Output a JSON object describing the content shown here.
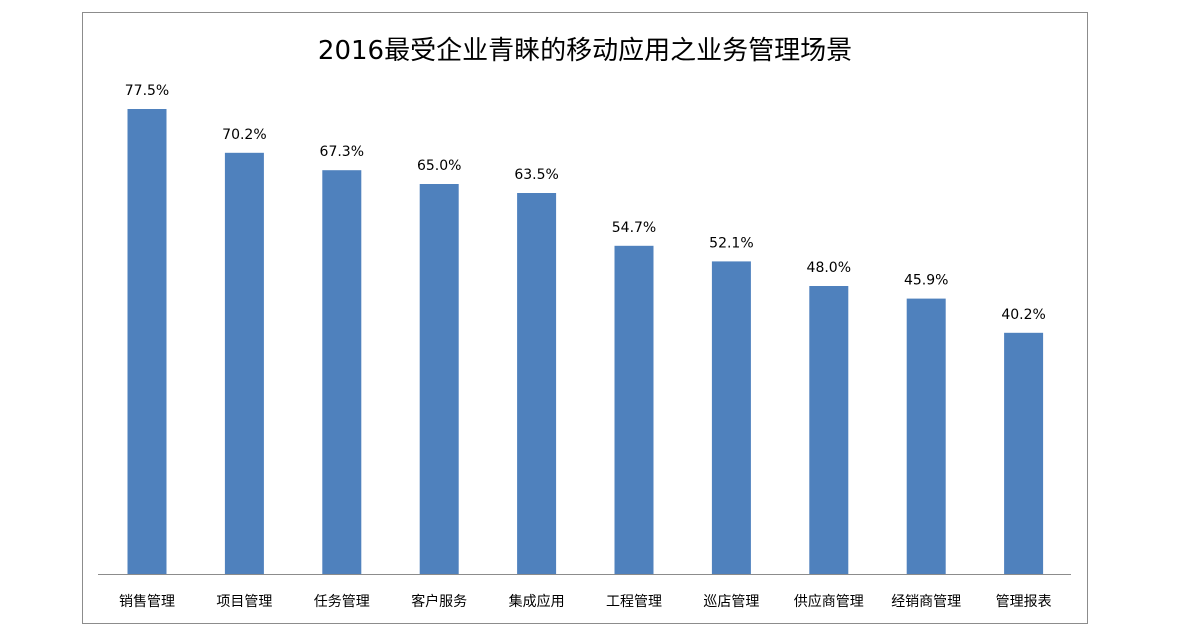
{
  "chart_data": {
    "type": "bar",
    "title": "2016最受企业青睐的移动应用之业务管理场景",
    "categories": [
      "销售管理",
      "项目管理",
      "任务管理",
      "客户服务",
      "集成应用",
      "工程管理",
      "巡店管理",
      "供应商管理",
      "经销商管理",
      "管理报表"
    ],
    "values": [
      77.5,
      70.2,
      67.3,
      65.0,
      63.5,
      54.7,
      52.1,
      48.0,
      45.9,
      40.2
    ],
    "data_labels": [
      "77.5%",
      "70.2%",
      "67.3%",
      "65.0%",
      "63.5%",
      "54.7%",
      "52.1%",
      "48.0%",
      "45.9%",
      "40.2%"
    ],
    "xlabel": "",
    "ylabel": "",
    "ylim": [
      0,
      100
    ],
    "grid": false,
    "legend": "none",
    "bar_color": "#4f81bd",
    "axis_color": "#8c8c8c"
  }
}
